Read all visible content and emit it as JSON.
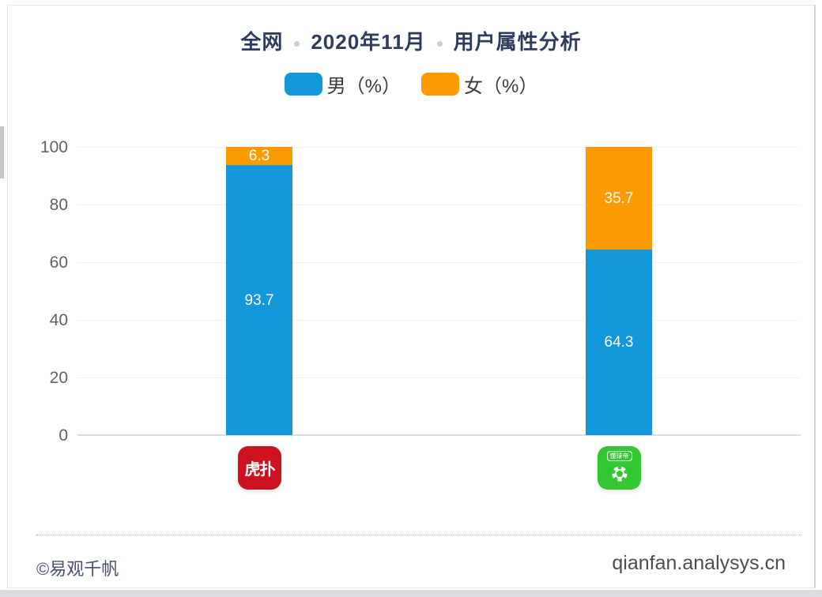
{
  "page": {
    "title": {
      "parts": [
        "全网",
        "2020年11月",
        "用户属性分析"
      ]
    },
    "legend": {
      "items": [
        {
          "label": "男（%）",
          "color": "#1397db"
        },
        {
          "label": "女（%）",
          "color": "#fb9a01"
        }
      ]
    },
    "footer": {
      "copyright": "©易观千帆",
      "website": "qianfan.analysys.cn"
    }
  },
  "apps": [
    {
      "name": "虎扑",
      "icon_text": "虎扑",
      "icon_bg": "#cb121e"
    },
    {
      "name": "懂球帝",
      "icon_badge": "懂球帝",
      "icon_bg": "#34c734"
    }
  ],
  "chart_data": {
    "type": "bar",
    "stacked": true,
    "orientation": "vertical",
    "title": "全网 · 2020年11月 · 用户属性分析",
    "categories": [
      "虎扑",
      "懂球帝"
    ],
    "series": [
      {
        "name": "男（%）",
        "color": "#1397db",
        "values": [
          93.7,
          64.3
        ]
      },
      {
        "name": "女（%）",
        "color": "#fb9a01",
        "values": [
          6.3,
          35.7
        ]
      }
    ],
    "xlabel": "",
    "ylabel": "",
    "ylim": [
      0,
      100
    ],
    "yticks": [
      0,
      20,
      40,
      60,
      80,
      100
    ],
    "grid": true,
    "legend_position": "top"
  }
}
